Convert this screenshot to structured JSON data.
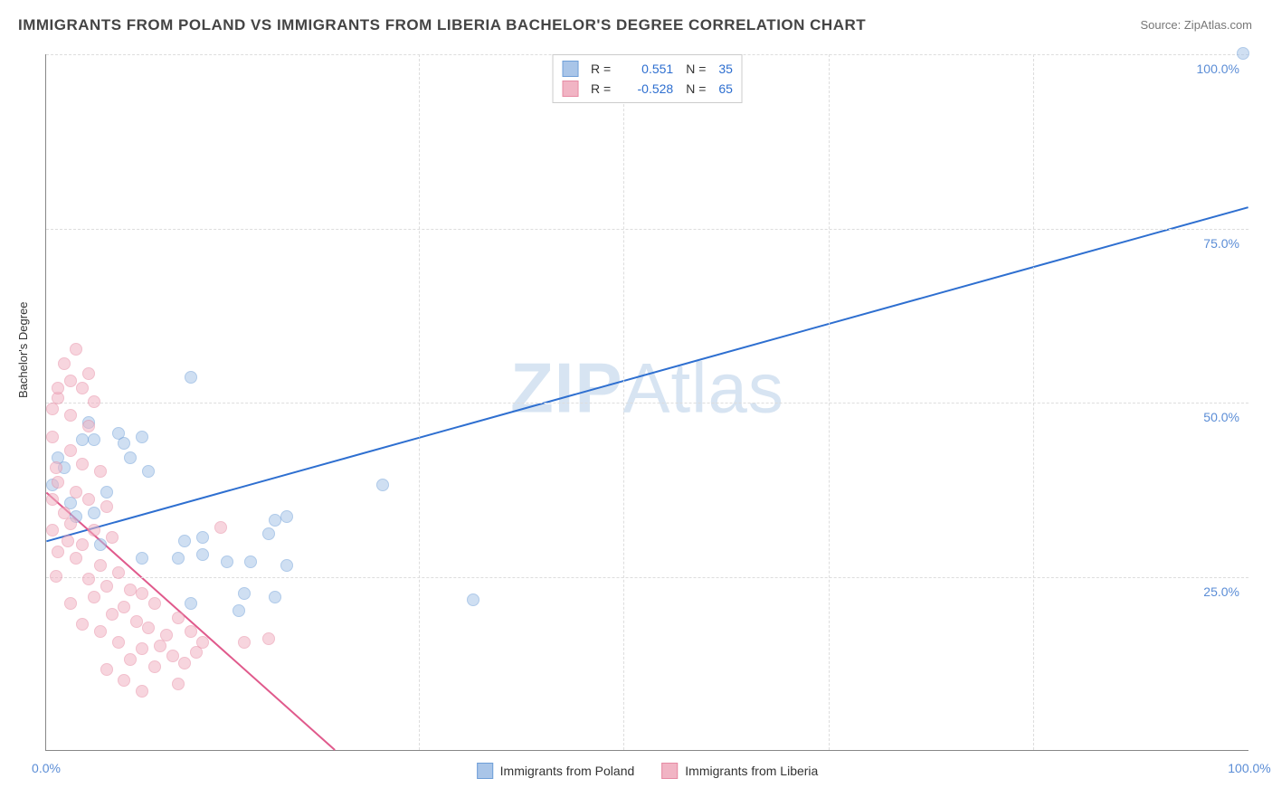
{
  "title": "IMMIGRANTS FROM POLAND VS IMMIGRANTS FROM LIBERIA BACHELOR'S DEGREE CORRELATION CHART",
  "source": "Source: ZipAtlas.com",
  "watermark_a": "ZIP",
  "watermark_b": "Atlas",
  "chart": {
    "type": "scatter",
    "background": "#ffffff",
    "grid_color": "#dddddd",
    "axis_color": "#888888",
    "tick_label_color": "#5b8dd6",
    "yaxis_title": "Bachelor's Degree",
    "yaxis_title_color": "#333333",
    "xlim": [
      0,
      100
    ],
    "ylim": [
      0,
      100
    ],
    "x_ticks": [
      0,
      100
    ],
    "x_tick_labels": [
      "0.0%",
      "100.0%"
    ],
    "x_minor_ticks": [
      31,
      48,
      65,
      82
    ],
    "y_ticks": [
      25,
      50,
      75,
      100
    ],
    "y_tick_labels": [
      "25.0%",
      "50.0%",
      "75.0%",
      "100.0%"
    ],
    "point_radius": 7,
    "series": [
      {
        "name": "Immigrants from Poland",
        "fill": "#a9c5e8",
        "stroke": "#6f9fd8",
        "fill_opacity": 0.55,
        "R": "0.551",
        "N": "35",
        "trend": {
          "x1": 0,
          "y1": 30,
          "x2": 100,
          "y2": 78,
          "color": "#2e6fd0",
          "width": 2
        },
        "points": [
          [
            99.5,
            100
          ],
          [
            12,
            53.5
          ],
          [
            28,
            38
          ],
          [
            35.5,
            21.5
          ],
          [
            19,
            33
          ],
          [
            20,
            33.5
          ],
          [
            18.5,
            31
          ],
          [
            15,
            27
          ],
          [
            17,
            27
          ],
          [
            20,
            26.5
          ],
          [
            13,
            28
          ],
          [
            11,
            27.5
          ],
          [
            8,
            45
          ],
          [
            6,
            45.5
          ],
          [
            4,
            44.5
          ],
          [
            3.5,
            47
          ],
          [
            1.5,
            40.5
          ],
          [
            1,
            42
          ],
          [
            0.5,
            38
          ],
          [
            2,
            35.5
          ],
          [
            4,
            34
          ],
          [
            11.5,
            30
          ],
          [
            13,
            30.5
          ],
          [
            6.5,
            44
          ],
          [
            8,
            27.5
          ],
          [
            4.5,
            29.5
          ],
          [
            12,
            21
          ],
          [
            16.5,
            22.5
          ],
          [
            16,
            20
          ],
          [
            19,
            22
          ],
          [
            3,
            44.5
          ],
          [
            7,
            42
          ],
          [
            8.5,
            40
          ],
          [
            5,
            37
          ],
          [
            2.5,
            33.5
          ]
        ]
      },
      {
        "name": "Immigrants from Liberia",
        "fill": "#f1b4c4",
        "stroke": "#e68aa3",
        "fill_opacity": 0.55,
        "R": "-0.528",
        "N": "65",
        "trend": {
          "x1": 0,
          "y1": 37,
          "x2": 24,
          "y2": 0,
          "color": "#e05a8c",
          "width": 2
        },
        "points": [
          [
            2.5,
            57.5
          ],
          [
            1.5,
            55.5
          ],
          [
            3,
            52
          ],
          [
            1,
            50.5
          ],
          [
            2,
            48
          ],
          [
            3.5,
            46.5
          ],
          [
            0.5,
            45
          ],
          [
            2,
            43
          ],
          [
            3,
            41
          ],
          [
            4.5,
            40
          ],
          [
            1,
            38.5
          ],
          [
            2.5,
            37
          ],
          [
            3.5,
            36
          ],
          [
            5,
            35
          ],
          [
            1.5,
            34
          ],
          [
            2,
            32.5
          ],
          [
            4,
            31.5
          ],
          [
            5.5,
            30.5
          ],
          [
            3,
            29.5
          ],
          [
            1,
            28.5
          ],
          [
            2.5,
            27.5
          ],
          [
            4.5,
            26.5
          ],
          [
            6,
            25.5
          ],
          [
            3.5,
            24.5
          ],
          [
            5,
            23.5
          ],
          [
            7,
            23
          ],
          [
            4,
            22
          ],
          [
            2,
            21
          ],
          [
            6.5,
            20.5
          ],
          [
            8,
            22.5
          ],
          [
            5.5,
            19.5
          ],
          [
            7.5,
            18.5
          ],
          [
            9,
            21
          ],
          [
            3,
            18
          ],
          [
            4.5,
            17
          ],
          [
            8.5,
            17.5
          ],
          [
            11,
            19
          ],
          [
            10,
            16.5
          ],
          [
            6,
            15.5
          ],
          [
            9.5,
            15
          ],
          [
            12,
            17
          ],
          [
            8,
            14.5
          ],
          [
            10.5,
            13.5
          ],
          [
            13,
            15.5
          ],
          [
            7,
            13
          ],
          [
            11.5,
            12.5
          ],
          [
            14.5,
            32
          ],
          [
            9,
            12
          ],
          [
            12.5,
            14
          ],
          [
            5,
            11.5
          ],
          [
            6.5,
            10
          ],
          [
            11,
            9.5
          ],
          [
            16.5,
            15.5
          ],
          [
            8,
            8.5
          ],
          [
            18.5,
            16
          ],
          [
            3.5,
            54
          ],
          [
            1,
            52
          ],
          [
            0.5,
            49
          ],
          [
            4,
            50
          ],
          [
            0.8,
            40.5
          ],
          [
            0.5,
            36
          ],
          [
            1.8,
            30
          ],
          [
            0.5,
            31.5
          ],
          [
            0.8,
            25
          ],
          [
            2,
            53
          ]
        ]
      }
    ],
    "legend_top": {
      "label_R": "R =",
      "label_N": "N =",
      "text_color": "#333333",
      "value_color": "#2e6fd0"
    },
    "legend_bottom": {
      "items": [
        {
          "label": "Immigrants from Poland",
          "fill": "#a9c5e8",
          "stroke": "#6f9fd8"
        },
        {
          "label": "Immigrants from Liberia",
          "fill": "#f1b4c4",
          "stroke": "#e68aa3"
        }
      ]
    }
  }
}
